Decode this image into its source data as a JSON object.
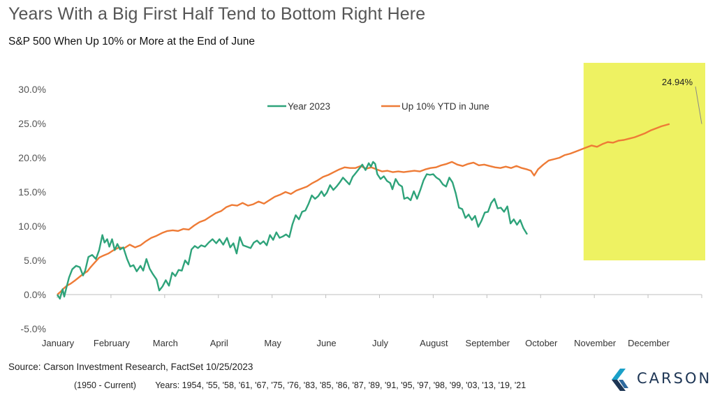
{
  "title": "Years With a Big First Half Tend to Bottom Right Here",
  "subtitle": "S&P 500 When Up 10% or More at the End of June",
  "source": "Source: Carson Investment Research, FactSet 10/25/2023",
  "years_range": "(1950 - Current)",
  "years_list": "Years: 1954, '55, '58, '61, '67, '75, '76, '83, '85, '86, '87, '89, '91, '95, '97, '98, '99, '03, '13, '19, '21",
  "logo_text": "CARSON",
  "colors": {
    "series_2023": "#2ea37a",
    "series_avg": "#ee7b36",
    "highlight": "#eef262",
    "logo_blue": "#1d3554",
    "logo_teal": "#1aa0c8"
  },
  "chart_data": {
    "type": "line",
    "ylim": [
      -5,
      30
    ],
    "yticks": [
      "-5.0%",
      "0.0%",
      "5.0%",
      "10.0%",
      "15.0%",
      "20.0%",
      "25.0%",
      "30.0%"
    ],
    "ytick_values": [
      -5,
      0,
      5,
      10,
      15,
      20,
      25,
      30
    ],
    "xlim": [
      0,
      12
    ],
    "month_labels": [
      "January",
      "February",
      "March",
      "April",
      "May",
      "June",
      "July",
      "August",
      "September",
      "October",
      "November",
      "December"
    ],
    "month_positions": [
      0,
      1,
      2,
      3,
      4,
      5,
      6,
      7,
      8,
      9,
      10,
      11
    ],
    "highlight_range": {
      "x": [
        9.8,
        12
      ],
      "y": [
        5,
        33
      ]
    },
    "annotation": {
      "text": "24.94%",
      "x": 12,
      "y": 24.94
    },
    "grid": false,
    "legend_position": "top-center",
    "series": [
      {
        "name": "Year 2023",
        "color": "#2ea37a",
        "points": [
          [
            0.0,
            0.0
          ],
          [
            0.05,
            -0.6
          ],
          [
            0.1,
            0.8
          ],
          [
            0.13,
            -0.3
          ],
          [
            0.17,
            1.0
          ],
          [
            0.22,
            2.5
          ],
          [
            0.28,
            3.7
          ],
          [
            0.35,
            4.2
          ],
          [
            0.42,
            4.0
          ],
          [
            0.48,
            2.8
          ],
          [
            0.52,
            3.5
          ],
          [
            0.58,
            5.5
          ],
          [
            0.65,
            5.8
          ],
          [
            0.72,
            5.2
          ],
          [
            0.78,
            6.5
          ],
          [
            0.84,
            8.7
          ],
          [
            0.88,
            7.6
          ],
          [
            0.93,
            8.1
          ],
          [
            0.97,
            7.0
          ],
          [
            1.02,
            8.1
          ],
          [
            1.07,
            6.5
          ],
          [
            1.12,
            7.4
          ],
          [
            1.17,
            6.6
          ],
          [
            1.23,
            6.9
          ],
          [
            1.3,
            5.2
          ],
          [
            1.36,
            4.1
          ],
          [
            1.42,
            4.3
          ],
          [
            1.48,
            3.4
          ],
          [
            1.55,
            4.2
          ],
          [
            1.6,
            3.5
          ],
          [
            1.66,
            5.2
          ],
          [
            1.72,
            3.8
          ],
          [
            1.78,
            3.0
          ],
          [
            1.85,
            2.2
          ],
          [
            1.9,
            0.6
          ],
          [
            1.96,
            1.2
          ],
          [
            2.02,
            2.1
          ],
          [
            2.08,
            1.3
          ],
          [
            2.14,
            3.2
          ],
          [
            2.2,
            2.7
          ],
          [
            2.26,
            3.6
          ],
          [
            2.32,
            3.5
          ],
          [
            2.38,
            5.0
          ],
          [
            2.44,
            4.4
          ],
          [
            2.5,
            6.6
          ],
          [
            2.56,
            7.1
          ],
          [
            2.62,
            6.8
          ],
          [
            2.68,
            7.2
          ],
          [
            2.75,
            7.0
          ],
          [
            2.82,
            7.6
          ],
          [
            2.89,
            8.1
          ],
          [
            2.96,
            7.5
          ],
          [
            3.02,
            8.1
          ],
          [
            3.09,
            7.3
          ],
          [
            3.16,
            8.3
          ],
          [
            3.22,
            6.9
          ],
          [
            3.28,
            7.5
          ],
          [
            3.34,
            6.0
          ],
          [
            3.4,
            8.4
          ],
          [
            3.46,
            7.2
          ],
          [
            3.53,
            7.0
          ],
          [
            3.6,
            6.8
          ],
          [
            3.66,
            7.6
          ],
          [
            3.72,
            7.9
          ],
          [
            3.78,
            7.4
          ],
          [
            3.84,
            7.8
          ],
          [
            3.9,
            7.2
          ],
          [
            3.96,
            8.7
          ],
          [
            4.02,
            8.0
          ],
          [
            4.08,
            9.1
          ],
          [
            4.14,
            8.3
          ],
          [
            4.2,
            8.5
          ],
          [
            4.26,
            8.8
          ],
          [
            4.32,
            8.4
          ],
          [
            4.38,
            10.3
          ],
          [
            4.44,
            11.6
          ],
          [
            4.5,
            11.0
          ],
          [
            4.56,
            12.1
          ],
          [
            4.62,
            12.3
          ],
          [
            4.68,
            13.3
          ],
          [
            4.74,
            14.5
          ],
          [
            4.8,
            14.0
          ],
          [
            4.86,
            14.4
          ],
          [
            4.92,
            15.1
          ],
          [
            4.97,
            14.4
          ],
          [
            5.02,
            14.9
          ],
          [
            5.08,
            16.0
          ],
          [
            5.14,
            15.3
          ],
          [
            5.2,
            15.8
          ],
          [
            5.26,
            16.4
          ],
          [
            5.32,
            17.1
          ],
          [
            5.38,
            16.6
          ],
          [
            5.44,
            16.1
          ],
          [
            5.5,
            17.2
          ],
          [
            5.56,
            17.8
          ],
          [
            5.62,
            18.4
          ],
          [
            5.68,
            19.0
          ],
          [
            5.74,
            18.2
          ],
          [
            5.8,
            19.2
          ],
          [
            5.84,
            18.7
          ],
          [
            5.88,
            19.4
          ],
          [
            5.92,
            19.1
          ],
          [
            5.96,
            17.6
          ],
          [
            6.02,
            16.9
          ],
          [
            6.08,
            17.3
          ],
          [
            6.14,
            16.6
          ],
          [
            6.2,
            16.3
          ],
          [
            6.24,
            15.4
          ],
          [
            6.3,
            16.9
          ],
          [
            6.36,
            16.1
          ],
          [
            6.42,
            15.8
          ],
          [
            6.46,
            14.0
          ],
          [
            6.52,
            14.2
          ],
          [
            6.58,
            13.8
          ],
          [
            6.64,
            15.1
          ],
          [
            6.7,
            14.0
          ],
          [
            6.76,
            15.3
          ],
          [
            6.82,
            16.7
          ],
          [
            6.88,
            17.6
          ],
          [
            6.94,
            17.5
          ],
          [
            7.0,
            17.6
          ],
          [
            7.06,
            17.1
          ],
          [
            7.12,
            16.8
          ],
          [
            7.18,
            16.1
          ],
          [
            7.24,
            15.8
          ],
          [
            7.3,
            17.1
          ],
          [
            7.36,
            16.4
          ],
          [
            7.42,
            14.8
          ],
          [
            7.48,
            12.7
          ],
          [
            7.54,
            12.5
          ],
          [
            7.6,
            11.2
          ],
          [
            7.66,
            11.7
          ],
          [
            7.72,
            10.9
          ],
          [
            7.78,
            11.5
          ],
          [
            7.84,
            9.9
          ],
          [
            7.9,
            10.8
          ],
          [
            7.96,
            12.0
          ],
          [
            8.02,
            12.1
          ],
          [
            8.08,
            13.4
          ],
          [
            8.14,
            14.0
          ],
          [
            8.2,
            12.6
          ],
          [
            8.26,
            12.7
          ],
          [
            8.32,
            12.1
          ],
          [
            8.38,
            12.9
          ],
          [
            8.44,
            10.4
          ],
          [
            8.5,
            11.0
          ],
          [
            8.56,
            10.2
          ],
          [
            8.62,
            10.9
          ],
          [
            8.68,
            9.7
          ],
          [
            8.75,
            8.8
          ]
        ]
      },
      {
        "name": "Up 10% YTD in June",
        "color": "#ee7b36",
        "points": [
          [
            0.0,
            0.0
          ],
          [
            0.06,
            0.4
          ],
          [
            0.12,
            0.9
          ],
          [
            0.18,
            1.3
          ],
          [
            0.25,
            1.6
          ],
          [
            0.32,
            2.0
          ],
          [
            0.4,
            2.5
          ],
          [
            0.48,
            3.0
          ],
          [
            0.56,
            3.4
          ],
          [
            0.62,
            4.0
          ],
          [
            0.7,
            4.7
          ],
          [
            0.78,
            5.4
          ],
          [
            0.86,
            5.7
          ],
          [
            0.95,
            6.0
          ],
          [
            1.05,
            6.5
          ],
          [
            1.15,
            6.9
          ],
          [
            1.25,
            6.8
          ],
          [
            1.35,
            7.3
          ],
          [
            1.45,
            6.9
          ],
          [
            1.55,
            7.2
          ],
          [
            1.65,
            7.8
          ],
          [
            1.75,
            8.3
          ],
          [
            1.85,
            8.6
          ],
          [
            1.95,
            9.0
          ],
          [
            2.05,
            9.3
          ],
          [
            2.15,
            9.4
          ],
          [
            2.25,
            9.3
          ],
          [
            2.35,
            9.6
          ],
          [
            2.45,
            9.5
          ],
          [
            2.55,
            10.1
          ],
          [
            2.65,
            10.6
          ],
          [
            2.75,
            10.9
          ],
          [
            2.85,
            11.4
          ],
          [
            2.95,
            11.9
          ],
          [
            3.05,
            12.2
          ],
          [
            3.15,
            12.8
          ],
          [
            3.25,
            13.1
          ],
          [
            3.35,
            13.0
          ],
          [
            3.45,
            13.4
          ],
          [
            3.55,
            13.0
          ],
          [
            3.65,
            13.2
          ],
          [
            3.75,
            13.6
          ],
          [
            3.85,
            13.3
          ],
          [
            3.95,
            13.8
          ],
          [
            4.05,
            14.3
          ],
          [
            4.15,
            14.6
          ],
          [
            4.25,
            15.0
          ],
          [
            4.35,
            14.7
          ],
          [
            4.45,
            15.2
          ],
          [
            4.55,
            15.5
          ],
          [
            4.65,
            15.8
          ],
          [
            4.75,
            16.3
          ],
          [
            4.85,
            16.7
          ],
          [
            4.95,
            17.2
          ],
          [
            5.05,
            17.5
          ],
          [
            5.15,
            17.9
          ],
          [
            5.25,
            18.3
          ],
          [
            5.35,
            18.6
          ],
          [
            5.45,
            18.5
          ],
          [
            5.55,
            18.5
          ],
          [
            5.65,
            18.8
          ],
          [
            5.75,
            18.4
          ],
          [
            5.85,
            18.6
          ],
          [
            5.95,
            18.3
          ],
          [
            6.05,
            18.0
          ],
          [
            6.15,
            18.1
          ],
          [
            6.25,
            17.9
          ],
          [
            6.35,
            18.0
          ],
          [
            6.45,
            17.9
          ],
          [
            6.55,
            18.0
          ],
          [
            6.65,
            18.1
          ],
          [
            6.75,
            18.0
          ],
          [
            6.85,
            18.3
          ],
          [
            6.95,
            18.5
          ],
          [
            7.05,
            18.6
          ],
          [
            7.15,
            18.9
          ],
          [
            7.25,
            19.1
          ],
          [
            7.35,
            19.4
          ],
          [
            7.45,
            19.0
          ],
          [
            7.55,
            18.8
          ],
          [
            7.65,
            19.1
          ],
          [
            7.75,
            19.3
          ],
          [
            7.85,
            18.9
          ],
          [
            7.95,
            19.0
          ],
          [
            8.05,
            18.8
          ],
          [
            8.15,
            18.6
          ],
          [
            8.25,
            18.5
          ],
          [
            8.35,
            18.7
          ],
          [
            8.45,
            18.5
          ],
          [
            8.55,
            18.8
          ],
          [
            8.65,
            18.5
          ],
          [
            8.75,
            18.3
          ],
          [
            8.82,
            18.1
          ],
          [
            8.88,
            17.4
          ],
          [
            8.95,
            18.3
          ],
          [
            9.05,
            19.0
          ],
          [
            9.15,
            19.6
          ],
          [
            9.25,
            19.8
          ],
          [
            9.35,
            20.0
          ],
          [
            9.45,
            20.4
          ],
          [
            9.55,
            20.6
          ],
          [
            9.65,
            20.9
          ],
          [
            9.75,
            21.2
          ],
          [
            9.85,
            21.5
          ],
          [
            9.95,
            21.8
          ],
          [
            10.05,
            21.6
          ],
          [
            10.15,
            22.0
          ],
          [
            10.25,
            22.3
          ],
          [
            10.35,
            22.2
          ],
          [
            10.45,
            22.5
          ],
          [
            10.55,
            22.6
          ],
          [
            10.65,
            22.8
          ],
          [
            10.75,
            23.0
          ],
          [
            10.85,
            23.3
          ],
          [
            10.95,
            23.6
          ],
          [
            11.05,
            24.0
          ],
          [
            11.15,
            24.3
          ],
          [
            11.25,
            24.6
          ],
          [
            11.4,
            24.94
          ]
        ]
      }
    ]
  }
}
